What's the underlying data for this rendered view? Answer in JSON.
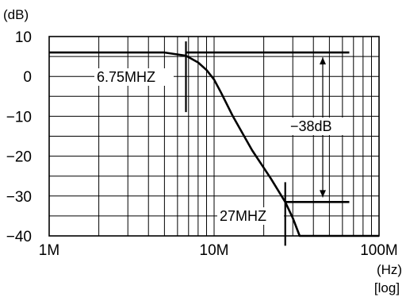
{
  "chart_data": {
    "type": "line",
    "y_unit": "(dB)",
    "x_unit": "(Hz)",
    "x_scale_label": "[log]",
    "x_scale": "log",
    "xlim": [
      1000000,
      100000000
    ],
    "ylim": [
      -40,
      10
    ],
    "grid": true,
    "x_ticks": [
      {
        "value": 1000000,
        "label": "1M"
      },
      {
        "value": 10000000,
        "label": "10M"
      },
      {
        "value": 100000000,
        "label": "100M"
      }
    ],
    "y_ticks": [
      {
        "value": 10,
        "label": "10"
      },
      {
        "value": 0,
        "label": "0"
      },
      {
        "value": -10,
        "label": "−10"
      },
      {
        "value": -20,
        "label": "−20"
      },
      {
        "value": -30,
        "label": "−30"
      },
      {
        "value": -40,
        "label": "−40"
      }
    ],
    "series": [
      {
        "x": [
          1000000,
          5000000,
          6750000,
          8000000,
          9000000,
          10000000,
          11000000,
          13000000,
          17000000,
          22000000,
          27000000,
          30000000,
          33000000,
          100000000
        ],
        "y": [
          6,
          6,
          5.2,
          3.5,
          1.6,
          -0.8,
          -4,
          -10,
          -18.5,
          -25.5,
          -31.5,
          -35.5,
          -40,
          -40
        ]
      }
    ],
    "reference_lines": [
      {
        "from_x": 6750000,
        "to_x": 66000000,
        "y": 6
      },
      {
        "from_x": 27000000,
        "to_x": 66000000,
        "y": -31.5
      }
    ],
    "annotations": [
      {
        "text": "6.75MHZ",
        "x": 6750000,
        "y": 6
      },
      {
        "text": "27MHZ",
        "x": 27000000,
        "y": -31.5
      },
      {
        "text": "−38dB",
        "from_y": 6,
        "to_y": -31.5
      }
    ]
  }
}
